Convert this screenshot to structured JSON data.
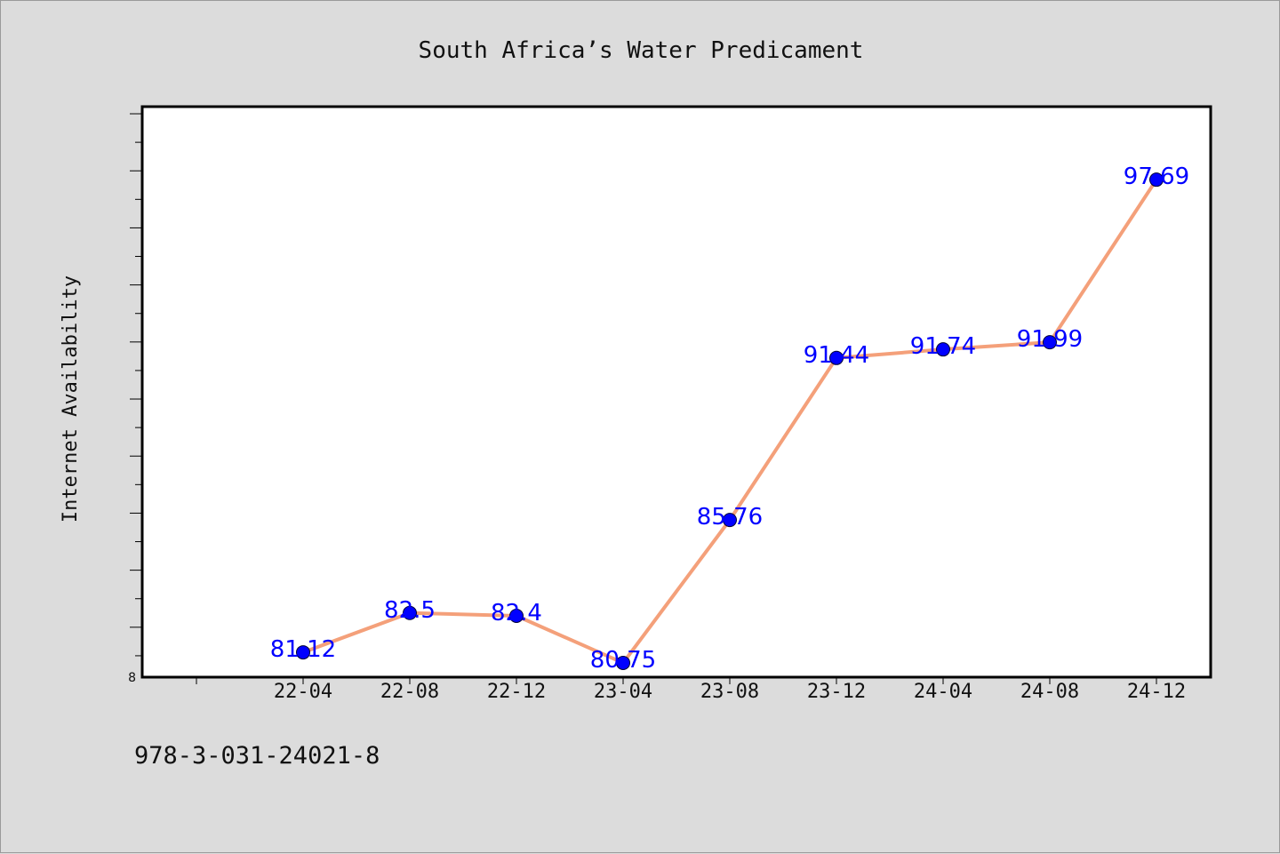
{
  "chart_data": {
    "type": "line",
    "title": "South Africa’s Water Predicament",
    "xlabel": "",
    "ylabel": "Internet Availability",
    "categories": [
      "22-04",
      "22-08",
      "22-12",
      "23-04",
      "23-08",
      "23-12",
      "24-04",
      "24-08",
      "24-12"
    ],
    "series": [
      {
        "values": [
          81.12,
          82.5,
          82.4,
          80.75,
          85.76,
          91.44,
          91.74,
          91.99,
          97.69
        ]
      }
    ],
    "data_labels": [
      "81.12",
      "82.5",
      "82.4",
      "80.75",
      "85.76",
      "91.44",
      "91.74",
      "91.99",
      "97.69"
    ],
    "ylim": [
      80.25,
      100.25
    ],
    "y_tick_labels": [
      "8"
    ],
    "grid": false,
    "legend": "none",
    "colors": {
      "line": "#f4a07a",
      "marker": "#0000ff",
      "label": "#0000ff",
      "background": "#dcdcdc",
      "plot_bg": "#ffffff"
    }
  },
  "footnote": "978-3-031-24021-8"
}
